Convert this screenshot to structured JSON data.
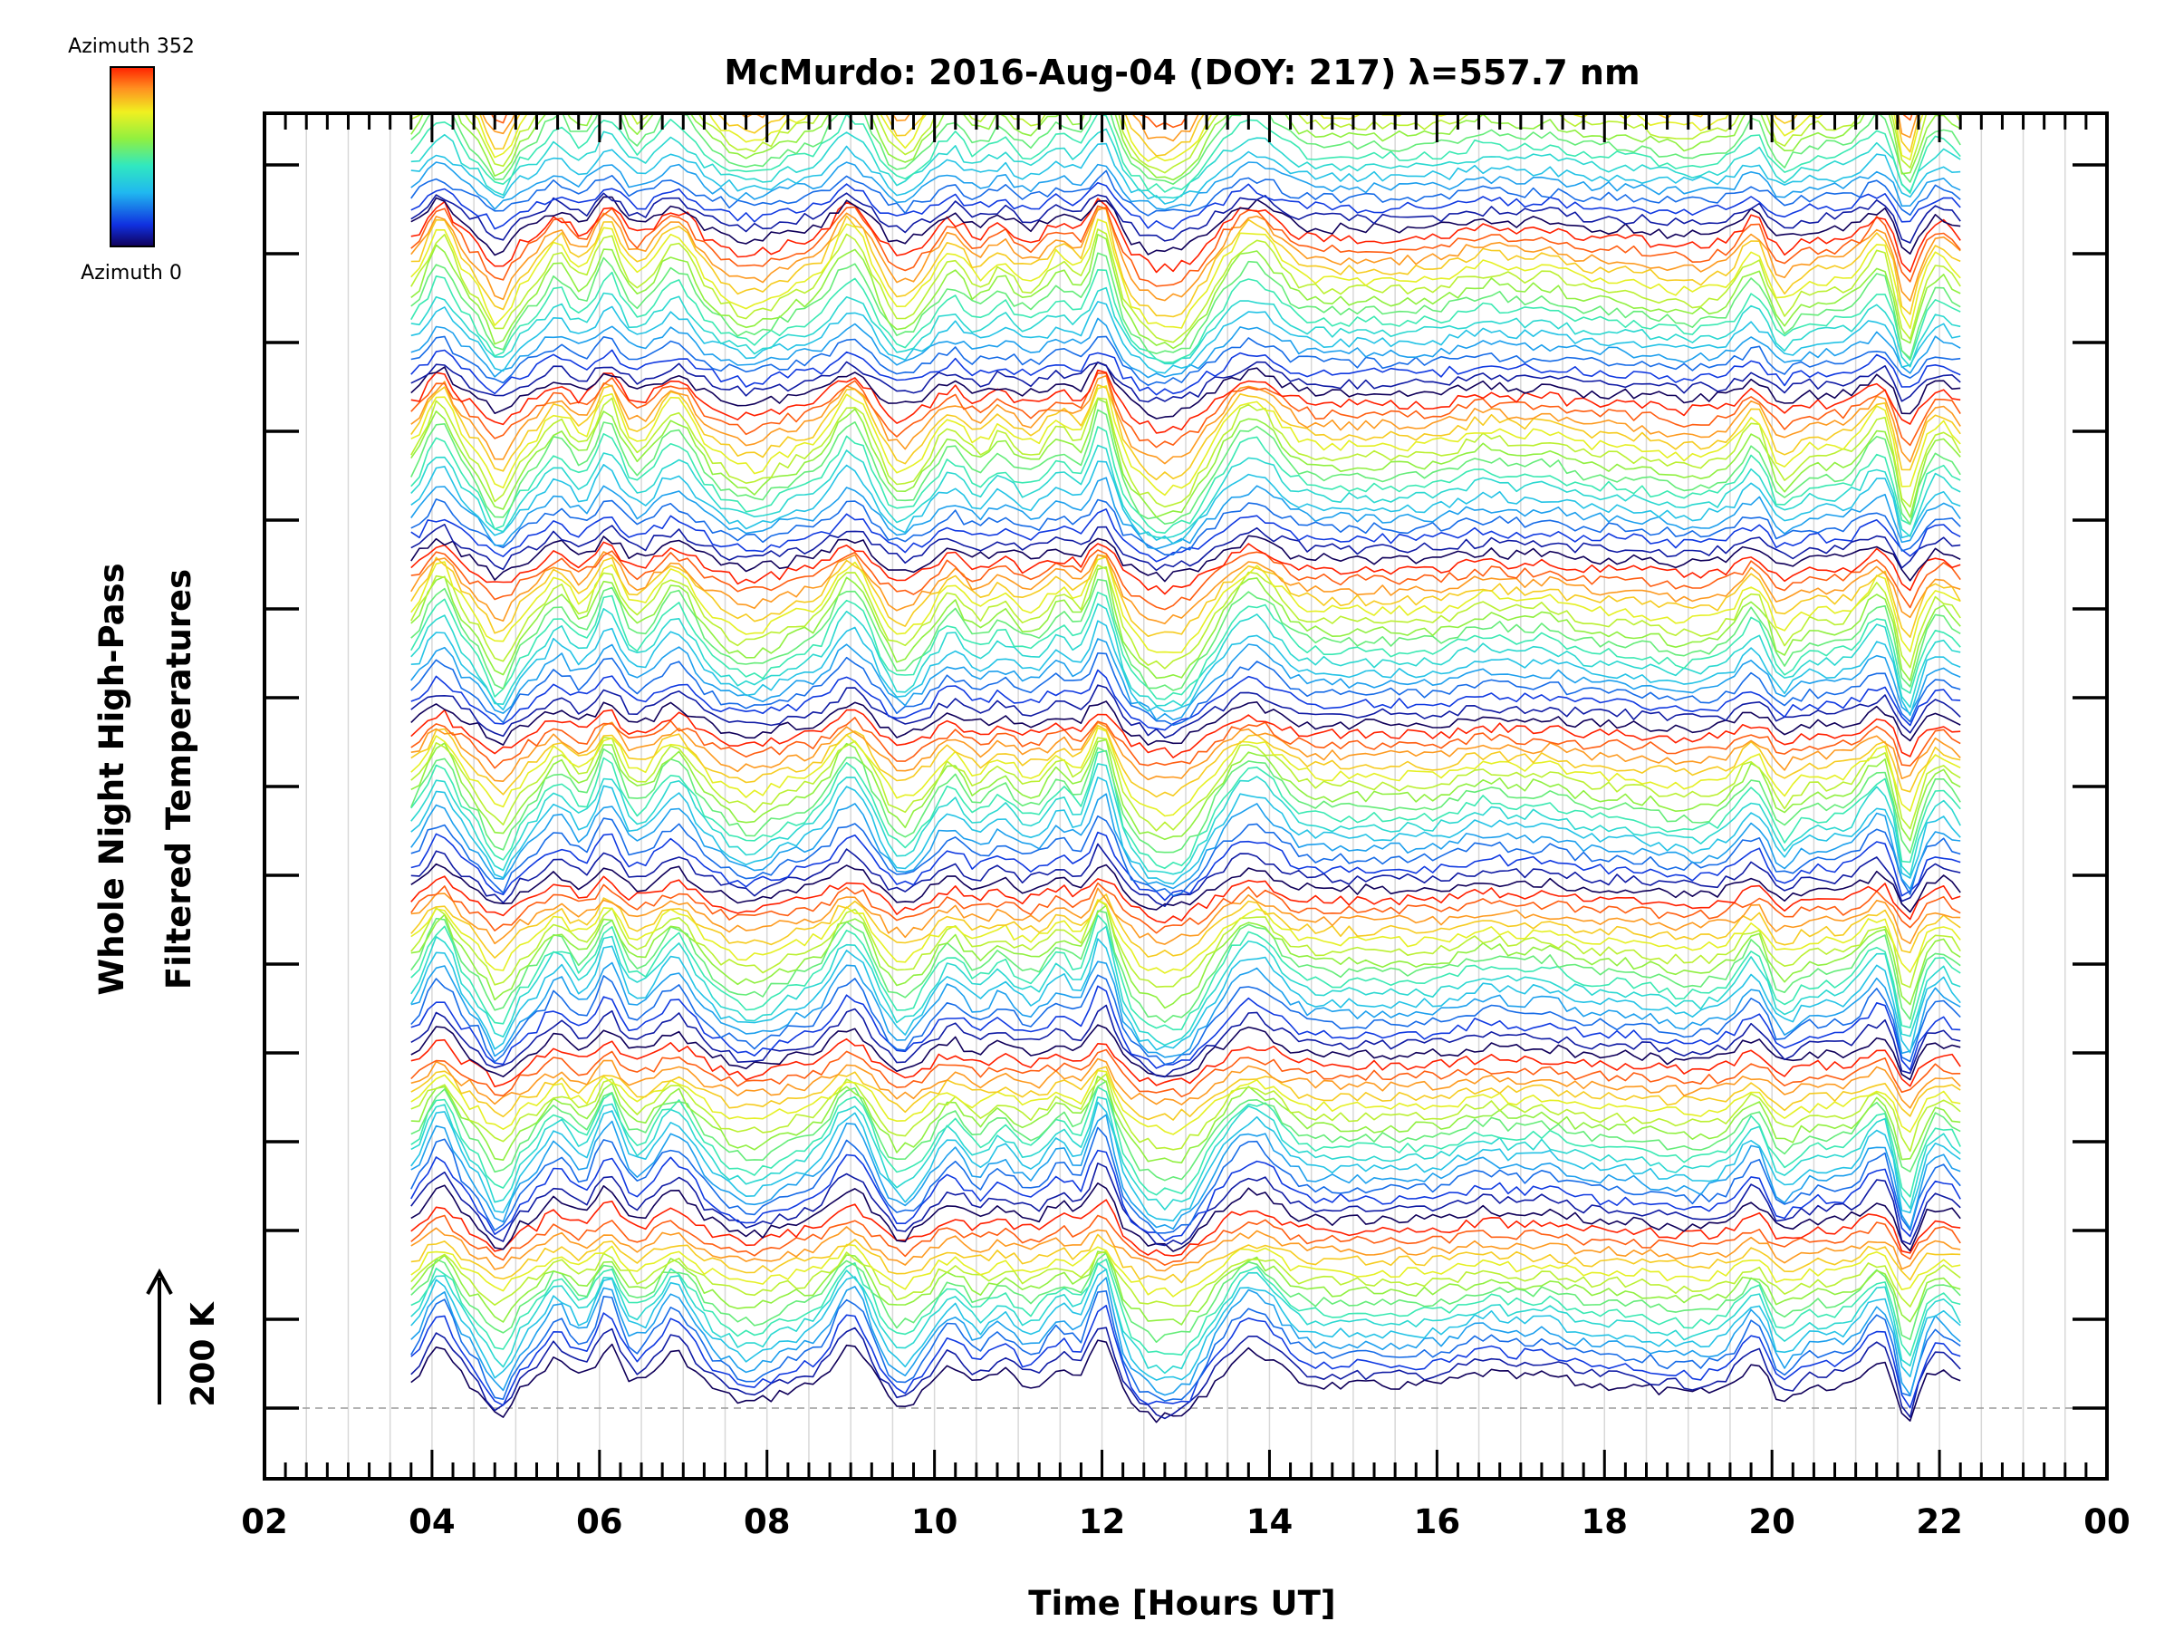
{
  "chart_data": {
    "type": "line",
    "title": "McMurdo: 2016-Aug-04 (DOY: 217) λ=557.7 nm",
    "xlabel": "Time [Hours UT]",
    "ylabel_line1": "Whole Night High-Pass",
    "ylabel_line2": "Filtered Temperatures",
    "xlim": [
      2,
      24
    ],
    "x_tick_labels": [
      "02",
      "04",
      "06",
      "08",
      "10",
      "12",
      "14",
      "16",
      "18",
      "20",
      "22",
      "00"
    ],
    "x_range_data": [
      3.75,
      22.25
    ],
    "traces_per_group": 16,
    "group_count": 8,
    "grid": "vertical minor lines every 0.5 h",
    "scale_bar": {
      "label": "200 K",
      "arrow": "up"
    },
    "colorbar": {
      "label_top": "Azimuth 352",
      "label_bottom": "Azimuth 0",
      "min": 0,
      "max": 352,
      "colormap": "rainbow (dark blue → cyan → green → yellow → red)",
      "placement": "top-left"
    },
    "colors": {
      "axis": "#000000",
      "grid": "#d8d8d8",
      "baseline": "#9a9a9a"
    }
  }
}
